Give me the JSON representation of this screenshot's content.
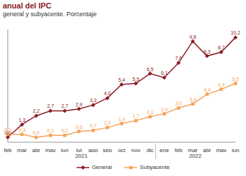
{
  "chart_data": {
    "type": "line",
    "title": "anual del IPC",
    "subtitle": "general y subyacente. Porcentaje",
    "categories": [
      "feb",
      "mar",
      "abr",
      "may",
      "jun",
      "jul",
      "ago",
      "sep",
      "oct",
      "nov",
      "dic",
      "ene",
      "feb",
      "mar",
      "abr",
      "may",
      "jun"
    ],
    "groups": [
      {
        "label": "2021",
        "count": 11
      },
      {
        "label": "2022",
        "count": 6
      }
    ],
    "series": [
      {
        "name": "General",
        "color": "#8b1c24",
        "marker": "diamond",
        "values": [
          0.0,
          1.3,
          2.2,
          2.7,
          2.7,
          2.9,
          3.3,
          4.0,
          5.4,
          5.5,
          6.5,
          6.1,
          7.6,
          9.8,
          8.3,
          8.7,
          10.2
        ],
        "value_labels": [
          "0,0",
          "1,3",
          "2,2",
          "2,7",
          "2,7",
          "2,9",
          "3,3",
          "4,0",
          "5,4",
          "5,5",
          "6,5",
          "6,1",
          "7,6",
          "9,8",
          "8,3",
          "8,7",
          "10,2"
        ]
      },
      {
        "name": "Subyacente",
        "color": "#f5a45a",
        "marker": "square",
        "values": [
          0.3,
          0.3,
          0.0,
          0.2,
          0.2,
          0.6,
          0.7,
          1.0,
          1.4,
          1.7,
          2.1,
          2.4,
          3.0,
          3.4,
          4.4,
          4.9,
          5.5
        ],
        "value_labels": [
          "0,3",
          "0,3",
          "0,0",
          "0,2",
          "0,2",
          "0,6",
          "0,7",
          "1,0",
          "1,4",
          "1,7",
          "2,1",
          "2,4",
          "3,0",
          "3,4",
          "4,4",
          "4,9",
          "5,5"
        ]
      }
    ],
    "ylim": [
      -0.5,
      11
    ],
    "tick_labels": "x",
    "data_labels": true,
    "grid": false,
    "legend": "bottom"
  }
}
